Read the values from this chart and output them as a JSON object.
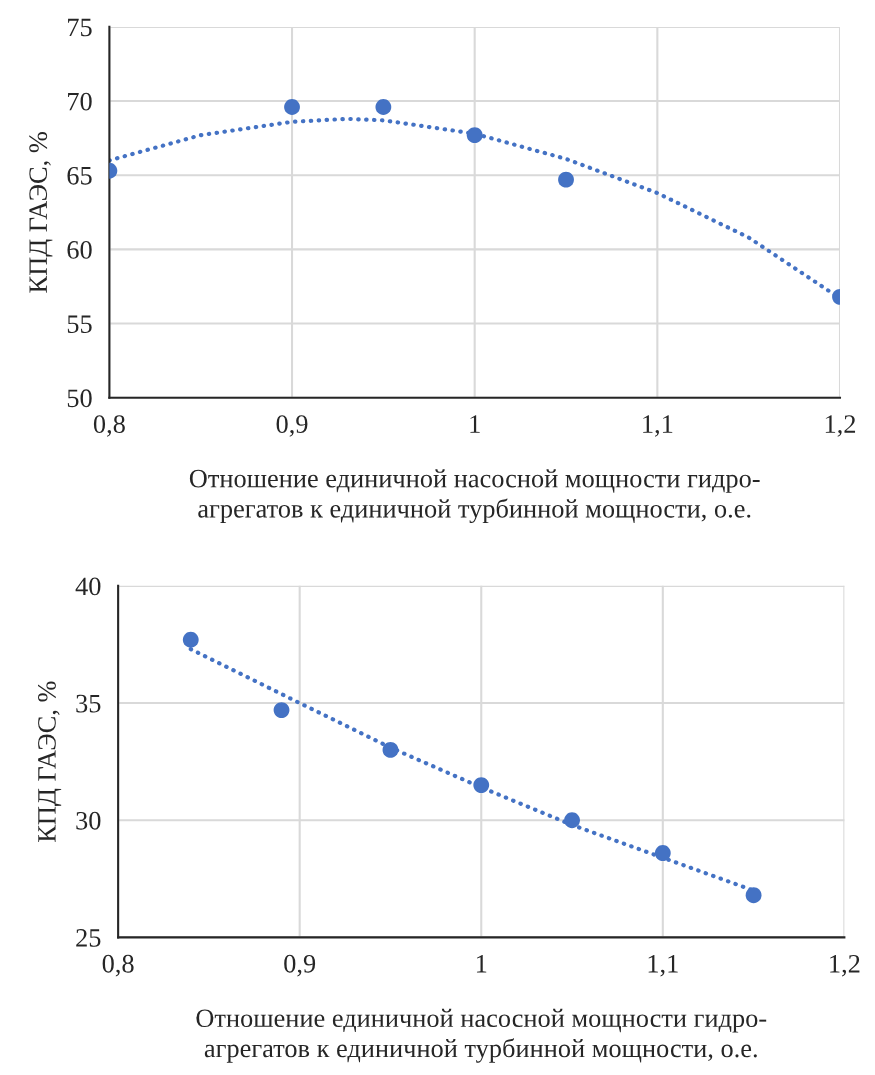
{
  "chart_data": [
    {
      "type": "scatter",
      "xlabel": "Отношение единичной насосной мощности гидро-\nагрегатов к единичной турбинной мощности, о.е.",
      "ylabel": "КПД ГАЭС, %",
      "xlim": [
        0.8,
        1.2
      ],
      "xticks": [
        {
          "value": 0.8,
          "label": "0,8"
        },
        {
          "value": 0.9,
          "label": "0,9"
        },
        {
          "value": 1,
          "label": "1"
        },
        {
          "value": 1.1,
          "label": "1,1"
        },
        {
          "value": 1.2,
          "label": "1,2"
        }
      ],
      "ylim": [
        50,
        75
      ],
      "yticks": [
        50,
        55,
        60,
        65,
        70,
        75
      ],
      "grid": true,
      "legend": false,
      "series": [
        {
          "color": "#4472c4",
          "marker": "circle",
          "x": [
            0.8,
            0.9,
            0.95,
            1.0,
            1.05,
            1.2
          ],
          "values": [
            65.3,
            69.6,
            69.6,
            67.7,
            64.7,
            56.8
          ]
        },
        {
          "type": "line",
          "color": "#4472c4",
          "line_style": "dotted",
          "marker": "none",
          "x": [
            0.8,
            0.85,
            0.9,
            0.93,
            0.95,
            1.0,
            1.05,
            1.1,
            1.15,
            1.2
          ],
          "values": [
            66.0,
            67.7,
            68.6,
            68.8,
            68.7,
            67.8,
            66.1,
            63.8,
            60.8,
            56.7
          ]
        }
      ]
    },
    {
      "type": "scatter",
      "xlabel": "Отношение единичной насосной мощности гидро-\nагрегатов к единичной турбинной мощности, о.е.",
      "ylabel": "КПД ГАЭС, %",
      "xlim": [
        0.8,
        1.2
      ],
      "xticks": [
        {
          "value": 0.8,
          "label": "0,8"
        },
        {
          "value": 0.9,
          "label": "0,9"
        },
        {
          "value": 1,
          "label": "1"
        },
        {
          "value": 1.1,
          "label": "1,1"
        },
        {
          "value": 1.2,
          "label": "1,2"
        }
      ],
      "ylim": [
        25,
        40
      ],
      "yticks": [
        25,
        30,
        35,
        40
      ],
      "grid": true,
      "legend": false,
      "series": [
        {
          "color": "#4472c4",
          "marker": "circle",
          "x": [
            0.84,
            0.89,
            0.95,
            1.0,
            1.05,
            1.1,
            1.15
          ],
          "values": [
            37.7,
            34.7,
            33.0,
            31.5,
            30.0,
            28.6,
            26.8
          ]
        },
        {
          "type": "line",
          "color": "#4472c4",
          "line_style": "dotted",
          "marker": "none",
          "x": [
            0.84,
            0.9,
            0.95,
            1.0,
            1.05,
            1.1,
            1.15
          ],
          "values": [
            37.3,
            35.0,
            33.1,
            31.4,
            29.8,
            28.4,
            27.0
          ]
        }
      ]
    }
  ]
}
